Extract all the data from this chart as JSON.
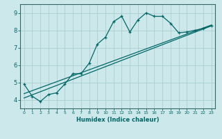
{
  "xlabel": "Humidex (Indice chaleur)",
  "ylabel": "",
  "bg_color": "#cce8ea",
  "grid_color": "#aacfd2",
  "line_color": "#006666",
  "spine_color": "#336666",
  "xlim": [
    -0.5,
    23.5
  ],
  "ylim": [
    3.5,
    9.5
  ],
  "xticks": [
    0,
    1,
    2,
    3,
    4,
    5,
    6,
    7,
    8,
    9,
    10,
    11,
    12,
    13,
    14,
    15,
    16,
    17,
    18,
    19,
    20,
    21,
    22,
    23
  ],
  "yticks": [
    4,
    5,
    6,
    7,
    8,
    9
  ],
  "curve1_x": [
    0,
    1,
    2,
    3,
    4,
    5,
    6,
    7,
    8,
    9,
    10,
    11,
    12,
    13,
    14,
    15,
    16,
    17,
    18,
    19,
    20,
    21,
    22,
    23
  ],
  "curve1_y": [
    4.9,
    4.2,
    3.9,
    4.3,
    4.4,
    4.9,
    5.5,
    5.5,
    6.1,
    7.2,
    7.6,
    8.5,
    8.8,
    7.9,
    8.6,
    9.0,
    8.8,
    8.8,
    8.4,
    7.85,
    7.9,
    8.0,
    8.1,
    8.25
  ],
  "line1_x": [
    0,
    23
  ],
  "line1_y": [
    4.35,
    8.3
  ],
  "line2_x": [
    0,
    23
  ],
  "line2_y": [
    4.1,
    8.25
  ]
}
